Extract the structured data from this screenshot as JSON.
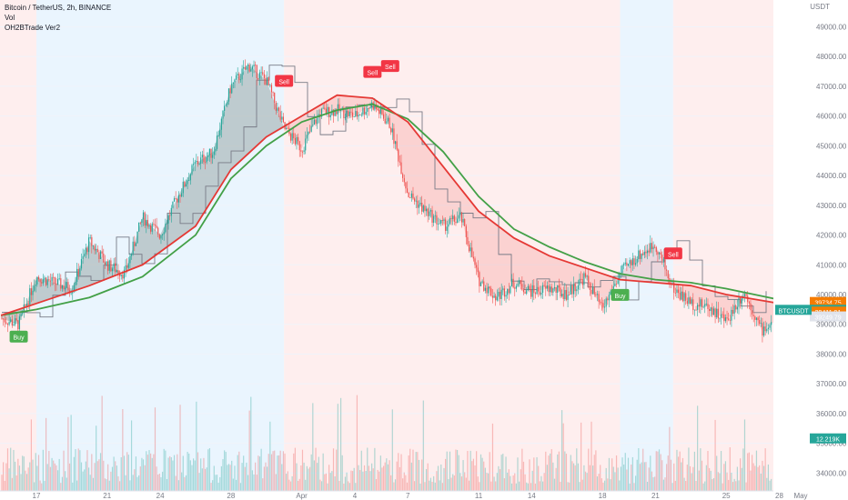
{
  "header": {
    "line1": "Bitcoin / TetherUS, 2h, BINANCE",
    "line2": "Vol",
    "line3": "OH2BTrade Ver2"
  },
  "currency_badge": "USDT",
  "price_axis": {
    "ticks": [
      "49000.00",
      "48000.00",
      "47000.00",
      "46000.00",
      "45000.00",
      "44000.00",
      "43000.00",
      "42000.00",
      "41000.00",
      "40000.00",
      "39000.00",
      "38000.00",
      "37000.00",
      "36000.00",
      "35000.00",
      "34000.00"
    ],
    "tick_values": [
      49000,
      48000,
      47000,
      46000,
      45000,
      44000,
      43000,
      42000,
      41000,
      40000,
      39000,
      38000,
      37000,
      36000,
      35000,
      34000
    ],
    "range": [
      33400,
      49900
    ]
  },
  "time_axis": {
    "labels": [
      "17",
      "21",
      "24",
      "28",
      "Apr",
      "4",
      "7",
      "11",
      "14",
      "18",
      "21",
      "25",
      "28",
      "May"
    ]
  },
  "price_labels": {
    "upper1": "39734.75",
    "upper2": "39504.95",
    "symbol_tag": "BTCUSDT",
    "last_price": "39471.05",
    "lower1": "39411.91",
    "lower2": "39249.79",
    "volume_value": "12.219K"
  },
  "colors": {
    "bull": "#26a69a",
    "bear": "#ef5350",
    "buy_badge": "#4caf50",
    "sell_badge": "#f23645",
    "bg_blue": "#e3f2fd",
    "bg_red": "#fde8e8",
    "ma_green": "#43a047",
    "ma_red": "#e53935",
    "step_line": "#787b86",
    "last_price_bg": "#26a69a",
    "upper_label_bg": "#f57c00"
  },
  "signals": {
    "buy_label": "Buy",
    "sell_label": "Sell"
  },
  "chart_data": {
    "type": "candlestick",
    "title": "Bitcoin / TetherUS, 2h, BINANCE",
    "indicators": [
      "Vol",
      "OH2BTrade Ver2"
    ],
    "ylim": [
      33400,
      49900
    ],
    "price_path": [
      {
        "date": "Mar 15",
        "price": 39200
      },
      {
        "date": "Mar 16",
        "price": 39000
      },
      {
        "date": "Mar 17",
        "price": 40600
      },
      {
        "date": "Mar 19",
        "price": 40200
      },
      {
        "date": "Mar 20",
        "price": 41800
      },
      {
        "date": "Mar 21",
        "price": 41000
      },
      {
        "date": "Mar 22",
        "price": 40700
      },
      {
        "date": "Mar 23",
        "price": 42600
      },
      {
        "date": "Mar 24",
        "price": 42000
      },
      {
        "date": "Mar 25",
        "price": 43300
      },
      {
        "date": "Mar 26",
        "price": 44400
      },
      {
        "date": "Mar 27",
        "price": 44800
      },
      {
        "date": "Mar 28",
        "price": 47000
      },
      {
        "date": "Mar 29",
        "price": 47700
      },
      {
        "date": "Mar 30",
        "price": 47200
      },
      {
        "date": "Mar 31",
        "price": 45600
      },
      {
        "date": "Apr 1",
        "price": 44900
      },
      {
        "date": "Apr 2",
        "price": 46100
      },
      {
        "date": "Apr 3",
        "price": 46200
      },
      {
        "date": "Apr 4",
        "price": 46000
      },
      {
        "date": "Apr 5",
        "price": 46400
      },
      {
        "date": "Apr 6",
        "price": 45700
      },
      {
        "date": "Apr 7",
        "price": 43400
      },
      {
        "date": "Apr 8",
        "price": 42800
      },
      {
        "date": "Apr 9",
        "price": 42300
      },
      {
        "date": "Apr 10",
        "price": 42600
      },
      {
        "date": "Apr 11",
        "price": 40500
      },
      {
        "date": "Apr 12",
        "price": 39900
      },
      {
        "date": "Apr 13",
        "price": 40400
      },
      {
        "date": "Apr 14",
        "price": 40100
      },
      {
        "date": "Apr 15",
        "price": 40200
      },
      {
        "date": "Apr 16",
        "price": 40000
      },
      {
        "date": "Apr 17",
        "price": 40600
      },
      {
        "date": "Apr 18",
        "price": 39500
      },
      {
        "date": "Apr 19",
        "price": 40700
      },
      {
        "date": "Apr 20",
        "price": 41300
      },
      {
        "date": "Apr 21",
        "price": 41700
      },
      {
        "date": "Apr 22",
        "price": 40200
      },
      {
        "date": "Apr 23",
        "price": 39700
      },
      {
        "date": "Apr 24",
        "price": 39600
      },
      {
        "date": "Apr 25",
        "price": 39100
      },
      {
        "date": "Apr 26",
        "price": 40100
      },
      {
        "date": "Apr 27",
        "price": 38800
      },
      {
        "date": "Apr 28",
        "price": 39200
      },
      {
        "date": "Apr 29",
        "price": 39471
      }
    ],
    "ma_fast": [
      {
        "date": "Mar 15",
        "price": 39300
      },
      {
        "date": "Mar 17",
        "price": 39700
      },
      {
        "date": "Mar 20",
        "price": 40300
      },
      {
        "date": "Mar 23",
        "price": 41000
      },
      {
        "date": "Mar 26",
        "price": 42300
      },
      {
        "date": "Mar 28",
        "price": 44200
      },
      {
        "date": "Mar 30",
        "price": 45300
      },
      {
        "date": "Apr 1",
        "price": 46000
      },
      {
        "date": "Apr 3",
        "price": 46700
      },
      {
        "date": "Apr 5",
        "price": 46600
      },
      {
        "date": "Apr 7",
        "price": 45800
      },
      {
        "date": "Apr 9",
        "price": 44300
      },
      {
        "date": "Apr 11",
        "price": 42800
      },
      {
        "date": "Apr 13",
        "price": 41900
      },
      {
        "date": "Apr 15",
        "price": 41300
      },
      {
        "date": "Apr 17",
        "price": 40900
      },
      {
        "date": "Apr 19",
        "price": 40500
      },
      {
        "date": "Apr 21",
        "price": 40400
      },
      {
        "date": "Apr 23",
        "price": 40300
      },
      {
        "date": "Apr 25",
        "price": 40000
      },
      {
        "date": "Apr 27",
        "price": 39800
      },
      {
        "date": "Apr 29",
        "price": 39600
      }
    ],
    "ma_slow": [
      {
        "date": "Mar 15",
        "price": 39300
      },
      {
        "date": "Mar 17",
        "price": 39500
      },
      {
        "date": "Mar 20",
        "price": 39900
      },
      {
        "date": "Mar 23",
        "price": 40600
      },
      {
        "date": "Mar 26",
        "price": 42000
      },
      {
        "date": "Mar 28",
        "price": 43900
      },
      {
        "date": "Mar 30",
        "price": 45000
      },
      {
        "date": "Apr 1",
        "price": 45800
      },
      {
        "date": "Apr 3",
        "price": 46200
      },
      {
        "date": "Apr 5",
        "price": 46400
      },
      {
        "date": "Apr 7",
        "price": 45900
      },
      {
        "date": "Apr 9",
        "price": 44800
      },
      {
        "date": "Apr 11",
        "price": 43300
      },
      {
        "date": "Apr 13",
        "price": 42200
      },
      {
        "date": "Apr 15",
        "price": 41600
      },
      {
        "date": "Apr 17",
        "price": 41100
      },
      {
        "date": "Apr 19",
        "price": 40700
      },
      {
        "date": "Apr 21",
        "price": 40500
      },
      {
        "date": "Apr 23",
        "price": 40400
      },
      {
        "date": "Apr 25",
        "price": 40200
      },
      {
        "date": "Apr 27",
        "price": 39950
      },
      {
        "date": "Apr 29",
        "price": 39700
      }
    ],
    "buy_signals": [
      {
        "date": "Mar 16",
        "price": 39000
      },
      {
        "date": "Apr 19",
        "price": 40400
      }
    ],
    "sell_signals": [
      {
        "date": "Mar 31",
        "price": 46800
      },
      {
        "date": "Apr 5",
        "price": 47100
      },
      {
        "date": "Apr 6",
        "price": 47300
      },
      {
        "date": "Apr 22",
        "price": 41000
      }
    ],
    "last_price": 39471.05,
    "volume_last": "12.219K"
  }
}
